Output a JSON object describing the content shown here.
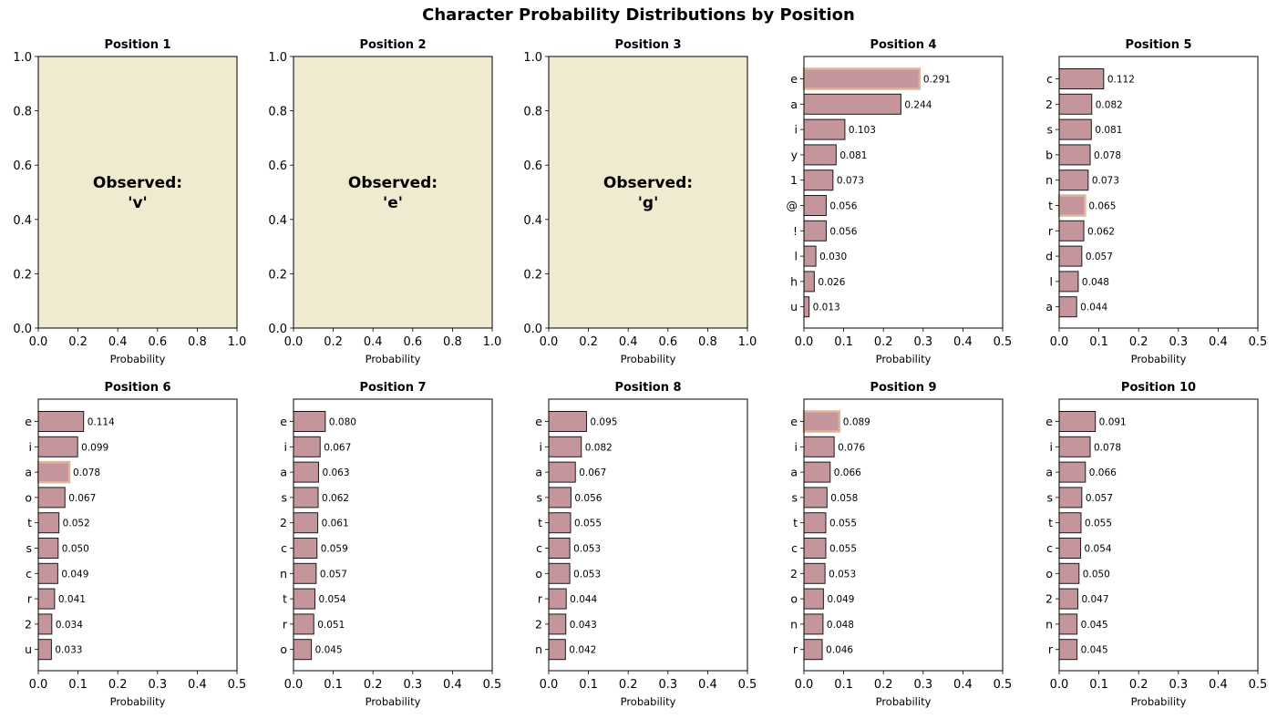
{
  "title": "Character Probability Distributions by Position",
  "colors": {
    "bar_fill": "#c4959b",
    "bar_edge": "#1a1a1a",
    "highlight_edge": "#dfb49a",
    "observed_bg": "#efead0",
    "axes": "#000000"
  },
  "chart_data": [
    {
      "type": "text",
      "title": "Position 1",
      "observed_label": "Observed:",
      "observed_char": "'v'",
      "xlabel": "Probability",
      "xlim": [
        0,
        1
      ],
      "ylim": [
        0,
        1
      ],
      "xticks": [
        "0.0",
        "0.2",
        "0.4",
        "0.6",
        "0.8",
        "1.0"
      ],
      "yticks": [
        "0.0",
        "0.2",
        "0.4",
        "0.6",
        "0.8",
        "1.0"
      ]
    },
    {
      "type": "text",
      "title": "Position 2",
      "observed_label": "Observed:",
      "observed_char": "'e'",
      "xlabel": "Probability",
      "xlim": [
        0,
        1
      ],
      "ylim": [
        0,
        1
      ],
      "xticks": [
        "0.0",
        "0.2",
        "0.4",
        "0.6",
        "0.8",
        "1.0"
      ],
      "yticks": [
        "0.0",
        "0.2",
        "0.4",
        "0.6",
        "0.8",
        "1.0"
      ]
    },
    {
      "type": "text",
      "title": "Position 3",
      "observed_label": "Observed:",
      "observed_char": "'g'",
      "xlabel": "Probability",
      "xlim": [
        0,
        1
      ],
      "ylim": [
        0,
        1
      ],
      "xticks": [
        "0.0",
        "0.2",
        "0.4",
        "0.6",
        "0.8",
        "1.0"
      ],
      "yticks": [
        "0.0",
        "0.2",
        "0.4",
        "0.6",
        "0.8",
        "1.0"
      ]
    },
    {
      "type": "bar",
      "orientation": "horizontal",
      "title": "Position 4",
      "xlabel": "Probability",
      "xlim": [
        0,
        0.5
      ],
      "xticks": [
        "0.0",
        "0.1",
        "0.2",
        "0.3",
        "0.4",
        "0.5"
      ],
      "categories": [
        "e",
        "a",
        "i",
        "y",
        "1",
        "@",
        "!",
        "l",
        "h",
        "u"
      ],
      "values": [
        0.291,
        0.244,
        0.103,
        0.081,
        0.073,
        0.056,
        0.056,
        0.03,
        0.026,
        0.013
      ],
      "labels": [
        "0.291",
        "0.244",
        "0.103",
        "0.081",
        "0.073",
        "0.056",
        "0.056",
        "0.030",
        "0.026",
        "0.013"
      ],
      "highlight": "e"
    },
    {
      "type": "bar",
      "orientation": "horizontal",
      "title": "Position 5",
      "xlabel": "Probability",
      "xlim": [
        0,
        0.5
      ],
      "xticks": [
        "0.0",
        "0.1",
        "0.2",
        "0.3",
        "0.4",
        "0.5"
      ],
      "categories": [
        "c",
        "2",
        "s",
        "b",
        "n",
        "t",
        "r",
        "d",
        "l",
        "a"
      ],
      "values": [
        0.112,
        0.082,
        0.081,
        0.078,
        0.073,
        0.065,
        0.062,
        0.057,
        0.048,
        0.044
      ],
      "labels": [
        "0.112",
        "0.082",
        "0.081",
        "0.078",
        "0.073",
        "0.065",
        "0.062",
        "0.057",
        "0.048",
        "0.044"
      ],
      "highlight": "t"
    },
    {
      "type": "bar",
      "orientation": "horizontal",
      "title": "Position 6",
      "xlabel": "Probability",
      "xlim": [
        0,
        0.5
      ],
      "xticks": [
        "0.0",
        "0.1",
        "0.2",
        "0.3",
        "0.4",
        "0.5"
      ],
      "categories": [
        "e",
        "i",
        "a",
        "o",
        "t",
        "s",
        "c",
        "r",
        "2",
        "u"
      ],
      "values": [
        0.114,
        0.099,
        0.078,
        0.067,
        0.052,
        0.05,
        0.049,
        0.041,
        0.034,
        0.033
      ],
      "labels": [
        "0.114",
        "0.099",
        "0.078",
        "0.067",
        "0.052",
        "0.050",
        "0.049",
        "0.041",
        "0.034",
        "0.033"
      ],
      "highlight": "a"
    },
    {
      "type": "bar",
      "orientation": "horizontal",
      "title": "Position 7",
      "xlabel": "Probability",
      "xlim": [
        0,
        0.5
      ],
      "xticks": [
        "0.0",
        "0.1",
        "0.2",
        "0.3",
        "0.4",
        "0.5"
      ],
      "categories": [
        "e",
        "i",
        "a",
        "s",
        "2",
        "c",
        "n",
        "t",
        "r",
        "o"
      ],
      "values": [
        0.08,
        0.067,
        0.063,
        0.062,
        0.061,
        0.059,
        0.057,
        0.054,
        0.051,
        0.045
      ],
      "labels": [
        "0.080",
        "0.067",
        "0.063",
        "0.062",
        "0.061",
        "0.059",
        "0.057",
        "0.054",
        "0.051",
        "0.045"
      ],
      "highlight": null
    },
    {
      "type": "bar",
      "orientation": "horizontal",
      "title": "Position 8",
      "xlabel": "Probability",
      "xlim": [
        0,
        0.5
      ],
      "xticks": [
        "0.0",
        "0.1",
        "0.2",
        "0.3",
        "0.4",
        "0.5"
      ],
      "categories": [
        "e",
        "i",
        "a",
        "s",
        "t",
        "c",
        "o",
        "r",
        "2",
        "n"
      ],
      "values": [
        0.095,
        0.082,
        0.067,
        0.056,
        0.055,
        0.053,
        0.053,
        0.044,
        0.043,
        0.042
      ],
      "labels": [
        "0.095",
        "0.082",
        "0.067",
        "0.056",
        "0.055",
        "0.053",
        "0.053",
        "0.044",
        "0.043",
        "0.042"
      ],
      "highlight": null
    },
    {
      "type": "bar",
      "orientation": "horizontal",
      "title": "Position 9",
      "xlabel": "Probability",
      "xlim": [
        0,
        0.5
      ],
      "xticks": [
        "0.0",
        "0.1",
        "0.2",
        "0.3",
        "0.4",
        "0.5"
      ],
      "categories": [
        "e",
        "i",
        "a",
        "s",
        "t",
        "c",
        "2",
        "o",
        "n",
        "r"
      ],
      "values": [
        0.089,
        0.076,
        0.066,
        0.058,
        0.055,
        0.055,
        0.053,
        0.049,
        0.048,
        0.046
      ],
      "labels": [
        "0.089",
        "0.076",
        "0.066",
        "0.058",
        "0.055",
        "0.055",
        "0.053",
        "0.049",
        "0.048",
        "0.046"
      ],
      "highlight": "e"
    },
    {
      "type": "bar",
      "orientation": "horizontal",
      "title": "Position 10",
      "xlabel": "Probability",
      "xlim": [
        0,
        0.5
      ],
      "xticks": [
        "0.0",
        "0.1",
        "0.2",
        "0.3",
        "0.4",
        "0.5"
      ],
      "categories": [
        "e",
        "i",
        "a",
        "s",
        "t",
        "c",
        "o",
        "2",
        "n",
        "r"
      ],
      "values": [
        0.091,
        0.078,
        0.066,
        0.057,
        0.055,
        0.054,
        0.05,
        0.047,
        0.045,
        0.045
      ],
      "labels": [
        "0.091",
        "0.078",
        "0.066",
        "0.057",
        "0.055",
        "0.054",
        "0.050",
        "0.047",
        "0.045",
        "0.045"
      ],
      "highlight": null
    }
  ]
}
